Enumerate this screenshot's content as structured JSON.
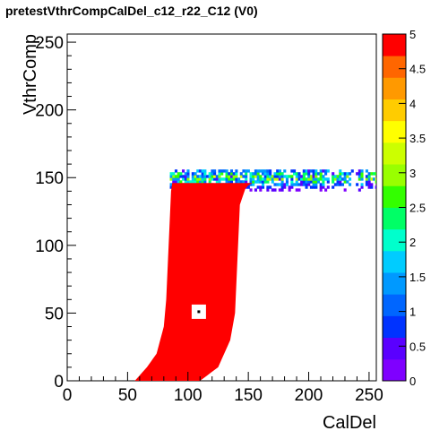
{
  "chart_data": {
    "type": "heatmap",
    "title": "pretestVthrCompCalDel_c12_r22_C12 (V0)",
    "xlabel": "CalDel",
    "ylabel": "VthrComp",
    "xlim": [
      0,
      256
    ],
    "ylim": [
      0,
      256
    ],
    "xticks": [
      0,
      50,
      100,
      150,
      200,
      250
    ],
    "yticks": [
      0,
      50,
      100,
      150,
      200,
      250
    ],
    "zlim": [
      0,
      5
    ],
    "zticks": [
      "0",
      "0.5",
      "1",
      "1.5",
      "2",
      "2.5",
      "3",
      "3.5",
      "4",
      "4.5",
      "5"
    ],
    "palette": [
      "#7f00ff",
      "#5a00ff",
      "#0033ff",
      "#0066ff",
      "#0099ff",
      "#00ccff",
      "#00ffcc",
      "#00ff66",
      "#33ff00",
      "#99ff00",
      "#ccff00",
      "#ffff00",
      "#ffcc00",
      "#ff9900",
      "#ff6600",
      "#ff0000"
    ],
    "saturated_color": "#ff0000",
    "region": {
      "value": 5,
      "left_edge": [
        [
          0,
          56
        ],
        [
          10,
          66
        ],
        [
          20,
          74
        ],
        [
          40,
          80
        ],
        [
          60,
          82
        ],
        [
          80,
          83
        ],
        [
          100,
          84
        ],
        [
          120,
          85
        ],
        [
          140,
          86
        ],
        [
          146,
          87
        ]
      ],
      "right_edge": [
        [
          0,
          110
        ],
        [
          10,
          125
        ],
        [
          30,
          135
        ],
        [
          50,
          139
        ],
        [
          70,
          140
        ],
        [
          90,
          141
        ],
        [
          110,
          142
        ],
        [
          130,
          143
        ],
        [
          143,
          148
        ],
        [
          150,
          160
        ],
        [
          153,
          200
        ],
        [
          154,
          256
        ]
      ],
      "top_band": {
        "y": [
          140,
          156
        ],
        "x": [
          85,
          256
        ],
        "value_range": [
          0.5,
          4
        ]
      }
    },
    "marker": {
      "x": 109,
      "y": 51
    }
  }
}
